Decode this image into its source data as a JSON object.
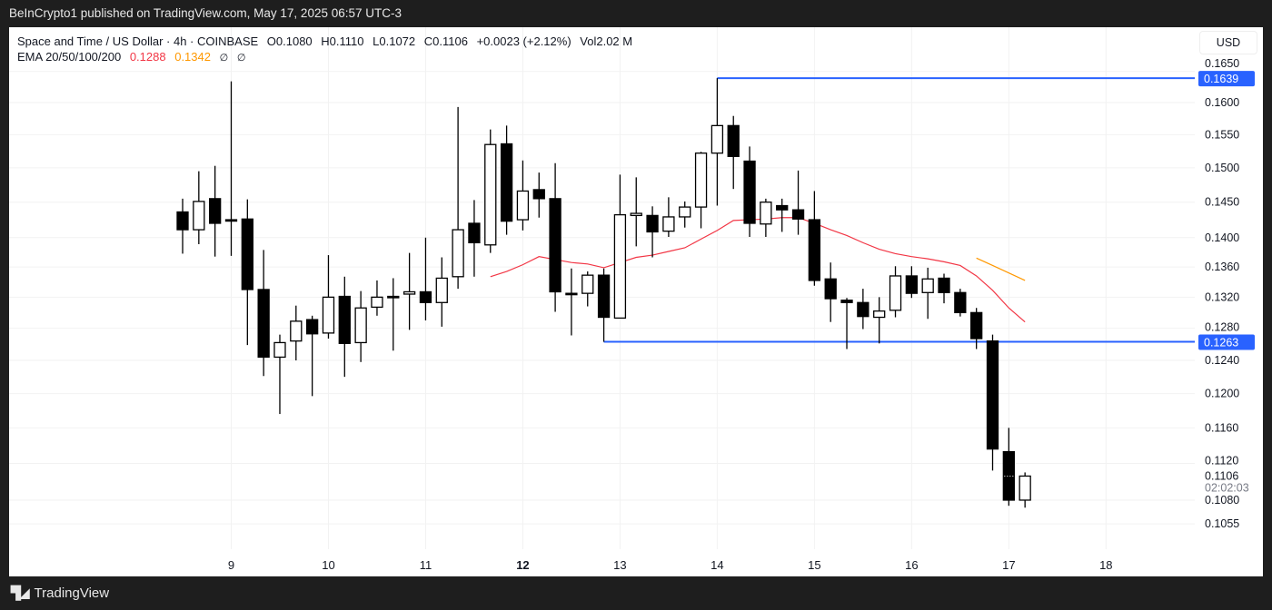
{
  "header": {
    "published": "BeInCrypto1 published on TradingView.com, May 17, 2025 06:57 UTC-3"
  },
  "legend": {
    "symbol": "Space and Time / US Dollar · 4h · COINBASE",
    "open": "O0.1080",
    "high": "H0.1110",
    "low": "L0.1072",
    "close": "C0.1106",
    "change": "+0.0023 (+2.12%)",
    "volume": "Vol2.02 M",
    "ema_label": "EMA 20/50/100/200",
    "ema20": "0.1288",
    "ema50": "0.1342",
    "ema100": "∅",
    "ema200": "∅"
  },
  "currency_button": "USD",
  "footer": {
    "brand": "TradingView",
    "logo_icon": "tradingview-logo-icon"
  },
  "colors": {
    "ema20": "#f23645",
    "ema50": "#ff9800",
    "level": "#2962ff",
    "candle": "#000000"
  },
  "chart_data": {
    "type": "candlestick",
    "title": "Space and Time / US Dollar · 4h · COINBASE",
    "y_scale": "log",
    "ylim": [
      0.104,
      0.167
    ],
    "y_ticks": [
      "0.1650",
      "0.1600",
      "0.1550",
      "0.1500",
      "0.1450",
      "0.1400",
      "0.1360",
      "0.1320",
      "0.1280",
      "0.1240",
      "0.1200",
      "0.1160",
      "0.1120",
      "0.1080",
      "0.1055"
    ],
    "x_ticks": [
      {
        "label": "9",
        "candle": 3,
        "bold": false
      },
      {
        "label": "10",
        "candle": 9,
        "bold": false
      },
      {
        "label": "11",
        "candle": 15,
        "bold": false
      },
      {
        "label": "12",
        "candle": 21,
        "bold": true
      },
      {
        "label": "13",
        "candle": 27,
        "bold": false
      },
      {
        "label": "14",
        "candle": 33,
        "bold": false
      },
      {
        "label": "15",
        "candle": 39,
        "bold": false
      },
      {
        "label": "16",
        "candle": 45,
        "bold": false
      },
      {
        "label": "17",
        "candle": 51,
        "bold": false
      },
      {
        "label": "18",
        "candle": 57,
        "bold": false
      }
    ],
    "candles_ohlc": [
      [
        0.1436,
        0.1455,
        0.1378,
        0.1411
      ],
      [
        0.1411,
        0.1495,
        0.1391,
        0.1451
      ],
      [
        0.1455,
        0.1503,
        0.1374,
        0.142
      ],
      [
        0.1425,
        0.1634,
        0.1375,
        0.1424
      ],
      [
        0.1426,
        0.1454,
        0.1259,
        0.133
      ],
      [
        0.133,
        0.1383,
        0.1221,
        0.1244
      ],
      [
        0.1244,
        0.1272,
        0.1176,
        0.1262
      ],
      [
        0.1264,
        0.1309,
        0.124,
        0.1289
      ],
      [
        0.1291,
        0.1296,
        0.1197,
        0.1273
      ],
      [
        0.1274,
        0.1376,
        0.1267,
        0.132
      ],
      [
        0.1321,
        0.1347,
        0.122,
        0.1261
      ],
      [
        0.1262,
        0.1328,
        0.1238,
        0.1306
      ],
      [
        0.1307,
        0.1342,
        0.1296,
        0.132
      ],
      [
        0.1321,
        0.1345,
        0.1252,
        0.132
      ],
      [
        0.1324,
        0.1379,
        0.1278,
        0.1327
      ],
      [
        0.1327,
        0.14,
        0.129,
        0.1313
      ],
      [
        0.1313,
        0.1373,
        0.1282,
        0.1345
      ],
      [
        0.1347,
        0.1593,
        0.1331,
        0.1411
      ],
      [
        0.142,
        0.1453,
        0.1347,
        0.1393
      ],
      [
        0.139,
        0.1558,
        0.1379,
        0.1535
      ],
      [
        0.1536,
        0.1564,
        0.1404,
        0.1423
      ],
      [
        0.1425,
        0.1511,
        0.141,
        0.1466
      ],
      [
        0.1468,
        0.1493,
        0.1428,
        0.1455
      ],
      [
        0.1455,
        0.1507,
        0.1301,
        0.1327
      ],
      [
        0.1325,
        0.1358,
        0.1271,
        0.1324
      ],
      [
        0.1325,
        0.1354,
        0.1308,
        0.1349
      ],
      [
        0.1349,
        0.1358,
        0.1263,
        0.1294
      ],
      [
        0.1293,
        0.149,
        0.1293,
        0.1432
      ],
      [
        0.1431,
        0.1486,
        0.1388,
        0.1434
      ],
      [
        0.1431,
        0.1444,
        0.1373,
        0.1408
      ],
      [
        0.1409,
        0.1457,
        0.1401,
        0.1429
      ],
      [
        0.1429,
        0.1451,
        0.1414,
        0.1443
      ],
      [
        0.1443,
        0.1524,
        0.1413,
        0.1522
      ],
      [
        0.1522,
        0.1639,
        0.1445,
        0.1564
      ],
      [
        0.1564,
        0.1579,
        0.1469,
        0.1517
      ],
      [
        0.151,
        0.1532,
        0.1401,
        0.142
      ],
      [
        0.1419,
        0.1455,
        0.1401,
        0.145
      ],
      [
        0.1445,
        0.1455,
        0.1408,
        0.1439
      ],
      [
        0.1439,
        0.1496,
        0.1404,
        0.1426
      ],
      [
        0.1425,
        0.1466,
        0.1335,
        0.1342
      ],
      [
        0.1344,
        0.1366,
        0.1288,
        0.1318
      ],
      [
        0.1316,
        0.1319,
        0.1254,
        0.1313
      ],
      [
        0.1313,
        0.1331,
        0.1279,
        0.1295
      ],
      [
        0.1294,
        0.132,
        0.1261,
        0.1302
      ],
      [
        0.1303,
        0.1361,
        0.1294,
        0.1348
      ],
      [
        0.1348,
        0.1361,
        0.1319,
        0.1325
      ],
      [
        0.1326,
        0.1359,
        0.1292,
        0.1344
      ],
      [
        0.1345,
        0.1351,
        0.1312,
        0.1326
      ],
      [
        0.1326,
        0.1331,
        0.1295,
        0.13
      ],
      [
        0.13,
        0.1306,
        0.1254,
        0.1267
      ],
      [
        0.1264,
        0.1272,
        0.1112,
        0.1136
      ],
      [
        0.1133,
        0.116,
        0.1074,
        0.108
      ],
      [
        0.108,
        0.111,
        0.1072,
        0.1106
      ]
    ],
    "ema20": {
      "start_candle": 19,
      "values": [
        0.1347,
        0.1354,
        0.1363,
        0.1374,
        0.137,
        0.1366,
        0.1364,
        0.1359,
        0.1366,
        0.1373,
        0.1376,
        0.1381,
        0.1386,
        0.1398,
        0.141,
        0.1424,
        0.1425,
        0.1426,
        0.1428,
        0.1428,
        0.142,
        0.1411,
        0.1403,
        0.1393,
        0.1384,
        0.1378,
        0.1374,
        0.1371,
        0.1367,
        0.1362,
        0.1348,
        0.1329,
        0.1306,
        0.1288
      ]
    },
    "ema50": {
      "start_candle": 49,
      "values": [
        0.1372,
        0.1362,
        0.1352,
        0.1342
      ]
    },
    "levels": [
      {
        "price": 0.1639,
        "label": "0.1639",
        "from_candle": 33
      },
      {
        "price": 0.1263,
        "label": "0.1263",
        "from_candle": 26
      }
    ],
    "last_price": {
      "label": "0.1106",
      "countdown": "02:02:03",
      "price": 0.1106
    },
    "grid": true
  }
}
